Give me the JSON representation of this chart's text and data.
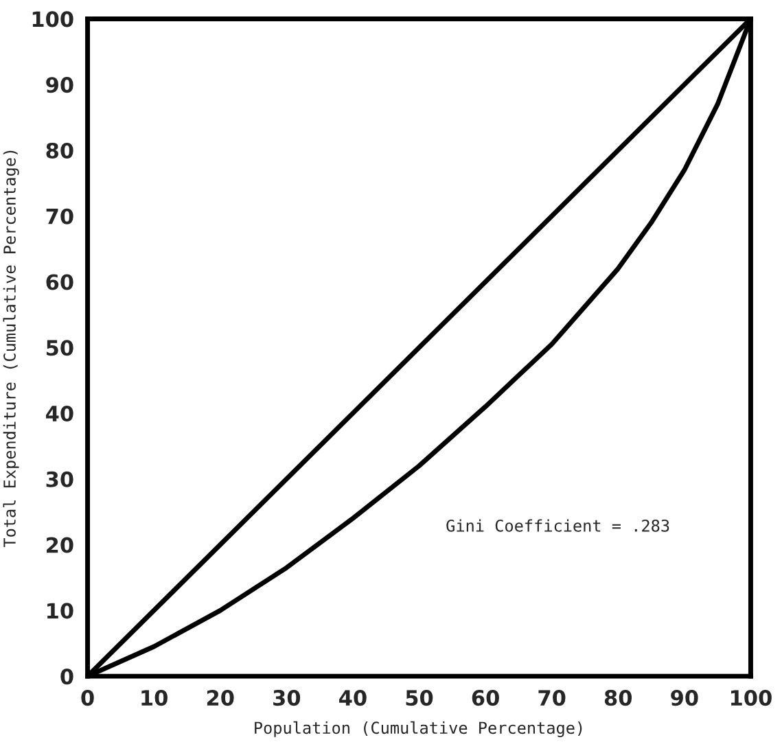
{
  "chart_data": {
    "type": "line",
    "xlabel": "Population (Cumulative Percentage)",
    "ylabel": "Total Expenditure (Cumulative Percentage)",
    "xlim": [
      0,
      100
    ],
    "ylim": [
      0,
      100
    ],
    "xticks": [
      0,
      10,
      20,
      30,
      40,
      50,
      60,
      70,
      80,
      90,
      100
    ],
    "yticks": [
      0,
      10,
      20,
      30,
      40,
      50,
      60,
      70,
      80,
      90,
      100
    ],
    "grid": false,
    "legend": false,
    "marker": "none",
    "line_style": "solid",
    "series": [
      {
        "color": "#000000",
        "x": [
          0,
          100
        ],
        "values": [
          0,
          100
        ]
      },
      {
        "color": "#000000",
        "x": [
          0,
          10,
          20,
          30,
          40,
          50,
          60,
          70,
          80,
          85,
          90,
          95,
          100
        ],
        "values": [
          0,
          4.5,
          10,
          16.5,
          24,
          32,
          41,
          50.5,
          62,
          69,
          77,
          87,
          100
        ]
      }
    ],
    "annotations": [
      "Gini Coefficient = .283"
    ]
  }
}
